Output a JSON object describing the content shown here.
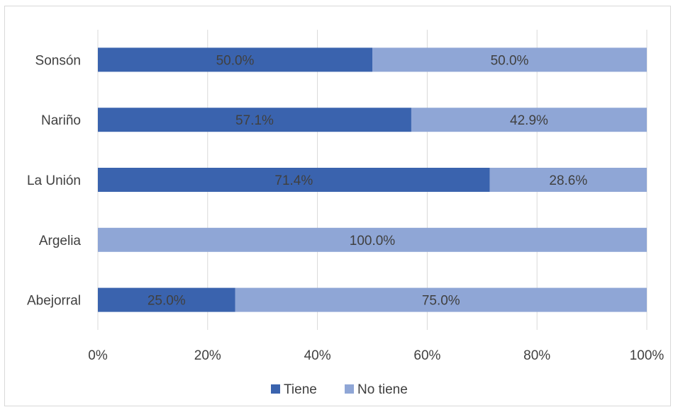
{
  "chart_data": {
    "type": "bar",
    "orientation": "horizontal",
    "stacked": true,
    "normalized": true,
    "title": "",
    "xlabel": "",
    "ylabel": "",
    "categories": [
      "Sonsón",
      "Nariño",
      "La Unión",
      "Argelia",
      "Abejorral"
    ],
    "series": [
      {
        "name": "Tiene",
        "color": "#3a63ae",
        "values": [
          50.0,
          57.1,
          71.4,
          0.0,
          25.0
        ],
        "labels": [
          "50.0%",
          "57.1%",
          "71.4%",
          "",
          "25.0%"
        ]
      },
      {
        "name": "No tiene",
        "color": "#8fa6d6",
        "values": [
          50.0,
          42.9,
          28.6,
          100.0,
          75.0
        ],
        "labels": [
          "50.0%",
          "42.9%",
          "28.6%",
          "100.0%",
          "75.0%"
        ]
      }
    ],
    "xlim": [
      0,
      100
    ],
    "x_ticks": [
      "0%",
      "20%",
      "40%",
      "60%",
      "80%",
      "100%"
    ],
    "grid": true,
    "legend_position": "bottom"
  }
}
